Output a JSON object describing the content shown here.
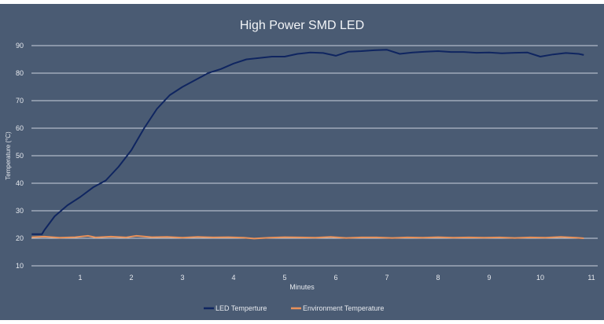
{
  "chart_data": {
    "type": "line",
    "title": "High Power SMD LED",
    "xlabel": "Minutes",
    "ylabel": "Temperature (°C)",
    "xlim": [
      0,
      11
    ],
    "ylim": [
      10,
      90
    ],
    "x_ticks": [
      1,
      2,
      3,
      4,
      5,
      6,
      7,
      8,
      9,
      10,
      11
    ],
    "y_ticks": [
      10,
      20,
      30,
      40,
      50,
      60,
      70,
      80,
      90
    ],
    "grid": "horizontal",
    "legend": "bottom",
    "series": [
      {
        "name": "LED Temperture",
        "color": "#0f2560",
        "x": [
          0.05,
          0.25,
          0.3,
          0.5,
          0.75,
          1,
          1.25,
          1.5,
          1.75,
          2,
          2.25,
          2.5,
          2.75,
          3,
          3.25,
          3.5,
          3.75,
          4,
          4.25,
          4.5,
          4.75,
          5,
          5.25,
          5.5,
          5.75,
          6,
          6.25,
          6.5,
          6.75,
          7,
          7.25,
          7.5,
          7.75,
          8,
          8.25,
          8.5,
          8.75,
          9,
          9.25,
          9.5,
          9.75,
          10,
          10.25,
          10.5,
          10.75,
          10.85
        ],
        "y": [
          21.5,
          21.5,
          23,
          28,
          32,
          35,
          38.5,
          41,
          46,
          52,
          60,
          67,
          72,
          75,
          77.5,
          80,
          81.5,
          83.5,
          85,
          85.5,
          86,
          86,
          87,
          87.5,
          87.3,
          86.3,
          87.8,
          88,
          88.3,
          88.5,
          87,
          87.5,
          87.8,
          88,
          87.7,
          87.7,
          87.4,
          87.5,
          87.2,
          87.4,
          87.5,
          86,
          86.8,
          87.3,
          87,
          86.6
        ]
      },
      {
        "name": "Environment Temperature",
        "color": "#e8915a",
        "x": [
          0.05,
          0.3,
          0.6,
          0.9,
          1.15,
          1.3,
          1.6,
          1.9,
          2.1,
          2.4,
          2.7,
          3,
          3.3,
          3.6,
          3.9,
          4.2,
          4.4,
          4.7,
          5,
          5.3,
          5.6,
          5.9,
          6.2,
          6.5,
          6.8,
          7.1,
          7.4,
          7.7,
          8,
          8.3,
          8.6,
          8.9,
          9.2,
          9.5,
          9.8,
          10.1,
          10.4,
          10.7,
          10.85
        ],
        "y": [
          20.4,
          20.6,
          20.2,
          20.4,
          20.9,
          20.3,
          20.6,
          20.3,
          20.9,
          20.4,
          20.5,
          20.2,
          20.5,
          20.3,
          20.4,
          20.2,
          19.9,
          20.2,
          20.4,
          20.3,
          20.2,
          20.5,
          20.1,
          20.3,
          20.3,
          20.1,
          20.3,
          20.2,
          20.4,
          20.2,
          20.3,
          20.2,
          20.3,
          20.1,
          20.3,
          20.2,
          20.5,
          20.2,
          20
        ]
      }
    ]
  }
}
